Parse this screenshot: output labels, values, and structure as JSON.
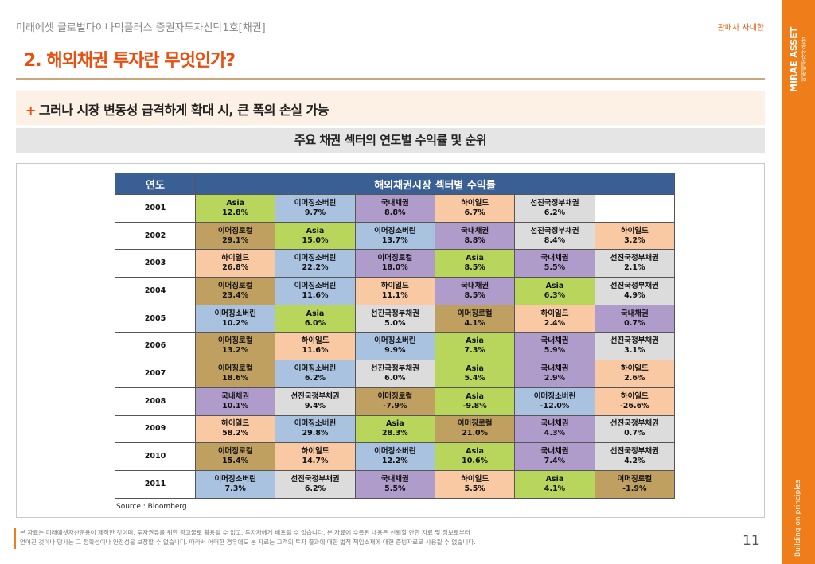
{
  "header": {
    "doc_title": "미래에셋 글로벌다이나믹플러스 증권자투자신탁1호[채권]",
    "distribution_note": "판매사 사내한",
    "section_title": "2. 해외채권 투자란 무엇인가?"
  },
  "brand": {
    "logo_text": "MIRAE ASSET",
    "logo_sub": "미래에셋자산운용",
    "tagline": "Building on principles",
    "accent_color": "#ef7d1a"
  },
  "subheading": {
    "plus": "+",
    "text": "그러나 시장 변동성 급격하게 확대 시, 큰 폭의 손실 가능"
  },
  "caption": "주요 채권 섹터의 연도별 수익률 및 순위",
  "table": {
    "header_year": "연도",
    "header_returns": "해외채권시장 섹터별 수익률",
    "rows": [
      {
        "year": "2001",
        "cells": [
          {
            "sector": "Asia",
            "value": "12.8%",
            "cls": "c-asia"
          },
          {
            "sector": "이머징소버린",
            "value": "9.7%",
            "cls": "c-emsov"
          },
          {
            "sector": "국내채권",
            "value": "8.8%",
            "cls": "c-local"
          },
          {
            "sector": "하이일드",
            "value": "6.7%",
            "cls": "c-hy"
          },
          {
            "sector": "선진국정부채권",
            "value": "6.2%",
            "cls": "c-dev"
          },
          {
            "sector": "",
            "value": "",
            "cls": "c-empty"
          }
        ]
      },
      {
        "year": "2002",
        "cells": [
          {
            "sector": "이머징로컬",
            "value": "29.1%",
            "cls": "c-emcorp"
          },
          {
            "sector": "Asia",
            "value": "15.0%",
            "cls": "c-asia"
          },
          {
            "sector": "이머징소버린",
            "value": "13.7%",
            "cls": "c-emsov"
          },
          {
            "sector": "국내채권",
            "value": "8.8%",
            "cls": "c-local"
          },
          {
            "sector": "선진국정부채권",
            "value": "8.4%",
            "cls": "c-dev"
          },
          {
            "sector": "하이일드",
            "value": "3.2%",
            "cls": "c-hy"
          }
        ]
      },
      {
        "year": "2003",
        "cells": [
          {
            "sector": "하이일드",
            "value": "26.8%",
            "cls": "c-hy"
          },
          {
            "sector": "이머징소버린",
            "value": "22.2%",
            "cls": "c-emsov"
          },
          {
            "sector": "이머징로컬",
            "value": "18.0%",
            "cls": "c-local"
          },
          {
            "sector": "Asia",
            "value": "8.5%",
            "cls": "c-asia"
          },
          {
            "sector": "국내채권",
            "value": "5.5%",
            "cls": "c-local"
          },
          {
            "sector": "선진국정부채권",
            "value": "2.1%",
            "cls": "c-dev"
          }
        ]
      },
      {
        "year": "2004",
        "cells": [
          {
            "sector": "이머징로컬",
            "value": "23.4%",
            "cls": "c-emcorp"
          },
          {
            "sector": "이머징소버린",
            "value": "11.6%",
            "cls": "c-emsov"
          },
          {
            "sector": "하이일드",
            "value": "11.1%",
            "cls": "c-hy"
          },
          {
            "sector": "국내채권",
            "value": "8.5%",
            "cls": "c-local"
          },
          {
            "sector": "Asia",
            "value": "6.3%",
            "cls": "c-asia"
          },
          {
            "sector": "선진국정부채권",
            "value": "4.9%",
            "cls": "c-dev"
          }
        ]
      },
      {
        "year": "2005",
        "cells": [
          {
            "sector": "이머징소버린",
            "value": "10.2%",
            "cls": "c-emsov"
          },
          {
            "sector": "Asia",
            "value": "6.0%",
            "cls": "c-asia"
          },
          {
            "sector": "선진국정부채권",
            "value": "5.0%",
            "cls": "c-dev"
          },
          {
            "sector": "이머징로컬",
            "value": "4.1%",
            "cls": "c-emcorp"
          },
          {
            "sector": "하이일드",
            "value": "2.4%",
            "cls": "c-hy"
          },
          {
            "sector": "국내채권",
            "value": "0.7%",
            "cls": "c-local"
          }
        ]
      },
      {
        "year": "2006",
        "cells": [
          {
            "sector": "이머징로컬",
            "value": "13.2%",
            "cls": "c-emcorp"
          },
          {
            "sector": "하이일드",
            "value": "11.6%",
            "cls": "c-hy"
          },
          {
            "sector": "이머징소버린",
            "value": "9.9%",
            "cls": "c-emsov"
          },
          {
            "sector": "Asia",
            "value": "7.3%",
            "cls": "c-asia"
          },
          {
            "sector": "국내채권",
            "value": "5.9%",
            "cls": "c-local"
          },
          {
            "sector": "선진국정부채권",
            "value": "3.1%",
            "cls": "c-dev"
          }
        ]
      },
      {
        "year": "2007",
        "cells": [
          {
            "sector": "이머징로컬",
            "value": "18.6%",
            "cls": "c-emcorp"
          },
          {
            "sector": "이머징소버린",
            "value": "6.2%",
            "cls": "c-emsov"
          },
          {
            "sector": "선진국정부채권",
            "value": "6.0%",
            "cls": "c-dev"
          },
          {
            "sector": "Asia",
            "value": "5.4%",
            "cls": "c-asia"
          },
          {
            "sector": "국내채권",
            "value": "2.9%",
            "cls": "c-local"
          },
          {
            "sector": "하이일드",
            "value": "2.6%",
            "cls": "c-hy"
          }
        ]
      },
      {
        "year": "2008",
        "cells": [
          {
            "sector": "국내채권",
            "value": "10.1%",
            "cls": "c-local"
          },
          {
            "sector": "선진국정부채권",
            "value": "9.4%",
            "cls": "c-dev"
          },
          {
            "sector": "이머징로컬",
            "value": "-7.9%",
            "cls": "c-emcorp"
          },
          {
            "sector": "Asia",
            "value": "-9.8%",
            "cls": "c-asia"
          },
          {
            "sector": "이머징소버린",
            "value": "-12.0%",
            "cls": "c-emsov"
          },
          {
            "sector": "하이일드",
            "value": "-26.6%",
            "cls": "c-hy"
          }
        ]
      },
      {
        "year": "2009",
        "cells": [
          {
            "sector": "하이일드",
            "value": "58.2%",
            "cls": "c-hy"
          },
          {
            "sector": "이머징소버린",
            "value": "29.8%",
            "cls": "c-emsov"
          },
          {
            "sector": "Asia",
            "value": "28.3%",
            "cls": "c-asia"
          },
          {
            "sector": "이머징로컬",
            "value": "21.0%",
            "cls": "c-emcorp"
          },
          {
            "sector": "국내채권",
            "value": "4.3%",
            "cls": "c-local"
          },
          {
            "sector": "선진국정부채권",
            "value": "0.7%",
            "cls": "c-dev"
          }
        ]
      },
      {
        "year": "2010",
        "cells": [
          {
            "sector": "이머징로컬",
            "value": "15.4%",
            "cls": "c-emcorp"
          },
          {
            "sector": "하이일드",
            "value": "14.7%",
            "cls": "c-hy"
          },
          {
            "sector": "이머징소버린",
            "value": "12.2%",
            "cls": "c-emsov"
          },
          {
            "sector": "Asia",
            "value": "10.6%",
            "cls": "c-asia"
          },
          {
            "sector": "국내채권",
            "value": "7.4%",
            "cls": "c-local"
          },
          {
            "sector": "선진국정부채권",
            "value": "4.2%",
            "cls": "c-dev"
          }
        ]
      },
      {
        "year": "2011",
        "cells": [
          {
            "sector": "이머징소버린",
            "value": "7.3%",
            "cls": "c-emsov"
          },
          {
            "sector": "선진국정부채권",
            "value": "6.2%",
            "cls": "c-dev"
          },
          {
            "sector": "국내채권",
            "value": "5.5%",
            "cls": "c-local"
          },
          {
            "sector": "하이일드",
            "value": "5.5%",
            "cls": "c-hy"
          },
          {
            "sector": "Asia",
            "value": "4.1%",
            "cls": "c-asia"
          },
          {
            "sector": "이머징로컬",
            "value": "-1.9%",
            "cls": "c-emcorp"
          }
        ]
      }
    ]
  },
  "source": "Source : Bloomberg",
  "footer": {
    "disclaimer_line1": "본 자료는 미래에셋자산운용이 제작한 것이며, 투자권유를 위한 광고물로 활용될 수 없고, 투자자에게 배포될 수 없습니다. 본 자료에 수록된 내용은 신뢰할 만한 자료 및 정보로부터",
    "disclaimer_line2": "얻어진 것이나 당사는 그 정확성이나 안전성을 보장할 수 없습니다. 따라서 어떠한 경우에도 본 자료는 고객의 투자 결과에 대한 법적 책임소재에 대한 증빙자료로 사용될 수 없습니다.",
    "page_number": "11"
  }
}
